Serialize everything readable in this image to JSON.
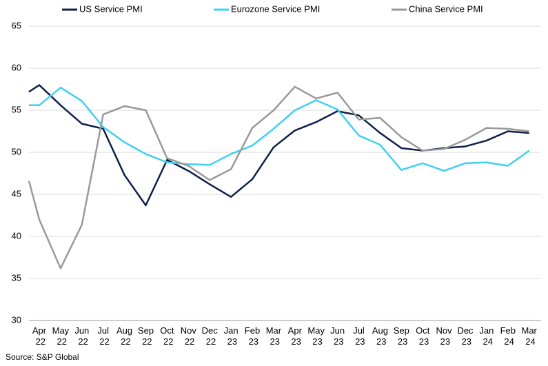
{
  "chart_data": {
    "type": "line",
    "categories": [
      null,
      "Apr 22",
      "May 22",
      "Jun 22",
      "Jul 22",
      "Aug 22",
      "Sep 22",
      "Oct 22",
      "Nov 22",
      "Dec 22",
      "Jan 23",
      "Feb 23",
      "Mar 23",
      "Apr 23",
      "May 23",
      "Jun 23",
      "Jul 23",
      "Aug 23",
      "Sep 23",
      "Oct 23",
      "Nov 23",
      "Dec 23",
      "Jan 24",
      "Feb 24",
      "Mar 24"
    ],
    "series": [
      {
        "name": "US Service PMI",
        "color": "#0d1f4a",
        "values": [
          57.2,
          58.0,
          55.6,
          53.4,
          52.8,
          47.3,
          43.7,
          49.1,
          47.8,
          46.2,
          44.7,
          46.8,
          50.6,
          52.6,
          53.6,
          54.9,
          54.4,
          52.3,
          50.5,
          50.2,
          50.5,
          50.7,
          51.4,
          52.5,
          52.3
        ]
      },
      {
        "name": "Eurozone Service PMI",
        "color": "#3fd0f0",
        "values": [
          55.6,
          55.6,
          57.7,
          56.1,
          53.0,
          51.2,
          49.8,
          48.8,
          48.6,
          48.5,
          49.8,
          50.8,
          52.8,
          55.0,
          56.2,
          55.1,
          52.0,
          50.9,
          47.9,
          48.7,
          47.8,
          48.7,
          48.8,
          48.4,
          50.2
        ]
      },
      {
        "name": "China Service PMI",
        "color": "#999999",
        "values": [
          46.6,
          42.0,
          36.2,
          41.4,
          54.5,
          55.5,
          55.0,
          49.3,
          48.4,
          46.7,
          48.0,
          52.9,
          55.0,
          57.8,
          56.4,
          57.1,
          53.9,
          54.1,
          51.8,
          50.2,
          50.4,
          51.5,
          52.9,
          52.8,
          52.5
        ]
      }
    ],
    "ylim": [
      30,
      65
    ],
    "yticks": [
      30,
      35,
      40,
      45,
      50,
      55,
      60,
      65
    ],
    "grid": true,
    "source": "Source: S&P Global"
  }
}
